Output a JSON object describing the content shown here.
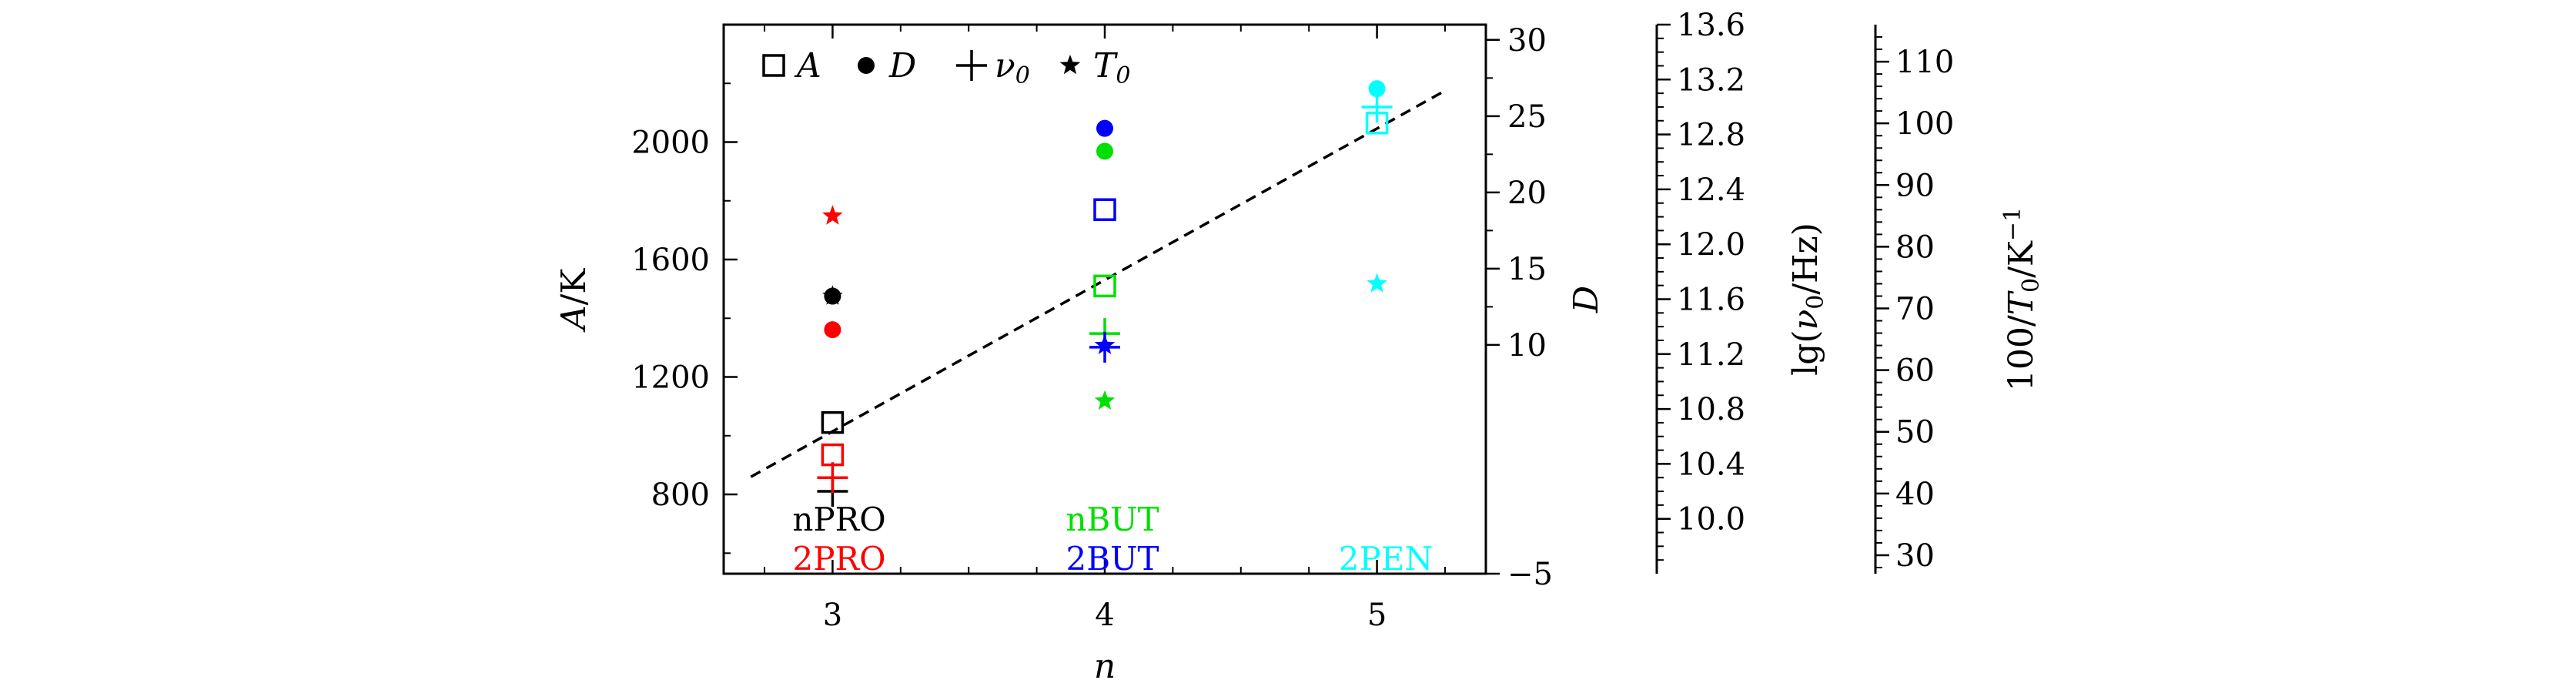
{
  "chart_data": {
    "type": "scatter",
    "xlabel": "n",
    "ylabel_left": "A/K",
    "ylabel_right1": "D",
    "ylabel_right2": "lg(ν₀/Hz)",
    "ylabel_right3": "100/T₀/K⁻¹",
    "x_ticks": [
      "3",
      "4",
      "5"
    ],
    "x_range": [
      2.6,
      5.4
    ],
    "axes": {
      "A": {
        "range": [
          530,
          2400
        ],
        "ticks": [
          "800",
          "1200",
          "1600",
          "2000"
        ]
      },
      "D": {
        "range": [
          -5,
          31
        ],
        "ticks": [
          "−5",
          "10",
          "15",
          "20",
          "25",
          "30"
        ]
      },
      "lgnu": {
        "range": [
          9.6,
          13.6
        ],
        "ticks": [
          "10.0",
          "10.4",
          "10.8",
          "11.2",
          "11.6",
          "12.0",
          "12.4",
          "12.8",
          "13.2",
          "13.6"
        ]
      },
      "invT": {
        "range": [
          27,
          116
        ],
        "ticks": [
          "30",
          "40",
          "50",
          "60",
          "70",
          "80",
          "90",
          "100",
          "110"
        ]
      }
    },
    "legend": {
      "position": "top-left",
      "items": [
        {
          "marker": "square",
          "label": "A"
        },
        {
          "marker": "circle",
          "label": "D"
        },
        {
          "marker": "plus",
          "label": "ν",
          "sub": "0"
        },
        {
          "marker": "star",
          "label": "T",
          "sub": "0"
        }
      ]
    },
    "group_labels": [
      {
        "text": "nPRO",
        "color": "#000000"
      },
      {
        "text": "2PRO",
        "color": "#ff0000"
      },
      {
        "text": "nBUT",
        "color": "#00e000"
      },
      {
        "text": "2BUT",
        "color": "#0000ff"
      },
      {
        "text": "2PEN",
        "color": "#00ffff"
      }
    ],
    "colors": {
      "nPRO": "#000000",
      "2PRO": "#ff0000",
      "nBUT": "#00e000",
      "2BUT": "#0000ff",
      "2PEN": "#00ffff"
    },
    "series": [
      {
        "sample": "nPRO",
        "n": 3,
        "A": 1045,
        "D": 13.2,
        "lgnu": 10.2,
        "invT": 72
      },
      {
        "sample": "2PRO",
        "n": 3,
        "A": 935,
        "D": 11.0,
        "lgnu": 10.3,
        "invT": 85
      },
      {
        "sample": "nBUT",
        "n": 4,
        "A": 1510,
        "D": 22.7,
        "lgnu": 11.35,
        "invT": 55
      },
      {
        "sample": "2BUT",
        "n": 4,
        "A": 1770,
        "D": 24.2,
        "lgnu": 11.25,
        "invT": 64
      },
      {
        "sample": "2PEN",
        "n": 5,
        "A": 2065,
        "D": 26.8,
        "lgnu": 13.0,
        "invT": 74
      }
    ],
    "fit_line": {
      "x": [
        2.7,
        5.25
      ],
      "A": [
        860,
        2175
      ],
      "style": "dashed"
    }
  }
}
